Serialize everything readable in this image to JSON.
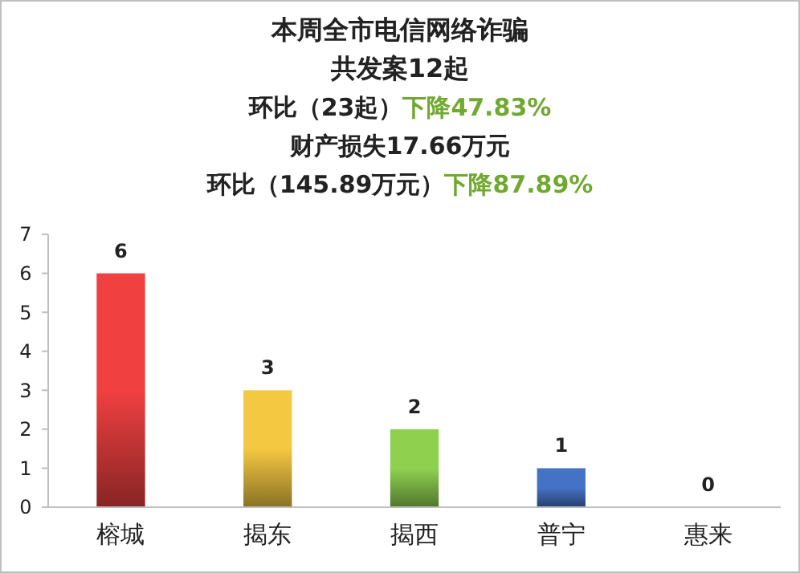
{
  "chart_data": {
    "type": "bar",
    "title": "本周全市电信网络诈骗",
    "subtitle": "共发案12起",
    "annotations": [
      "环比（23起）",
      "下降47.83%",
      "财产损失17.66万元",
      "环比（145.89万元）",
      "下降87.89%"
    ],
    "categories": [
      "榕城",
      "揭东",
      "揭西",
      "普宁",
      "惠来"
    ],
    "values": [
      6,
      3,
      2,
      1,
      0
    ],
    "colors": [
      "#f04040",
      "#f5c842",
      "#8fd14f",
      "#4472c4",
      "#a5a5a5"
    ],
    "ylim": [
      0,
      7
    ],
    "yticks": [
      0,
      1,
      2,
      3,
      4,
      5,
      6,
      7
    ],
    "grid": false,
    "data_labels": true
  }
}
